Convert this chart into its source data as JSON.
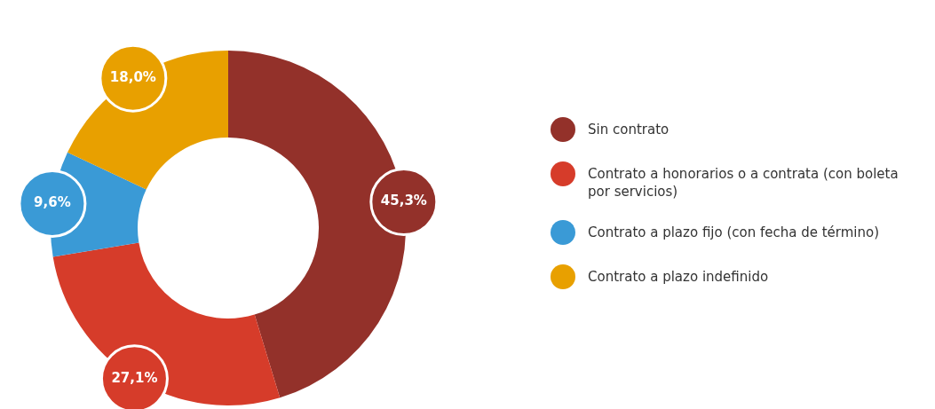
{
  "chart_data": {
    "type": "donut",
    "categories": [
      "Sin contrato",
      "Contrato a honorarios o a contrata (con boleta por servicios)",
      "Contrato a plazo fijo (con fecha de término)",
      "Contrato a plazo indefinido"
    ],
    "values": [
      45.3,
      27.1,
      9.6,
      18.0
    ],
    "colors": [
      "#93312a",
      "#d63c2a",
      "#3a9ad6",
      "#e8a000"
    ],
    "value_labels": [
      "45,3%",
      "27,1%",
      "9,6%",
      "18,0%"
    ],
    "legend": "right"
  }
}
